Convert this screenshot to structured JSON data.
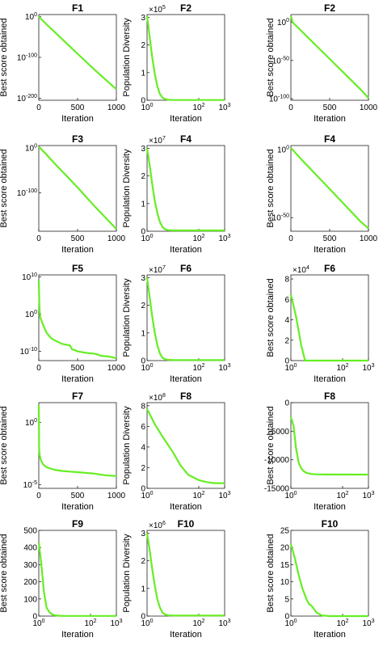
{
  "chart_data": [
    {
      "type": "line",
      "title": "F1",
      "xlabel": "Iteration",
      "ylabel": "Best score obtained",
      "xscale": "linear",
      "yscale": "log",
      "xticks": [
        {
          "v": 0,
          "label": "0"
        },
        {
          "v": 500,
          "label": "500"
        },
        {
          "v": 1000,
          "label": "1000"
        }
      ],
      "yticks": [
        {
          "v": 0,
          "label": "10^0"
        },
        {
          "v": -100,
          "label": "10^-100"
        },
        {
          "v": -200,
          "label": "10^-200"
        }
      ],
      "xlim": [
        0,
        1000
      ],
      "ylim": [
        -205,
        5
      ],
      "color": "#66ee22",
      "series": [
        {
          "x": [
            0,
            20,
            100,
            200,
            300,
            400,
            500,
            600,
            700,
            800,
            900,
            1000
          ],
          "y": [
            0,
            -4,
            -19,
            -37,
            -55,
            -73,
            -91,
            -109,
            -127,
            -144,
            -161,
            -178
          ]
        }
      ]
    },
    {
      "type": "line",
      "title": "F2",
      "xlabel": "Iteration",
      "ylabel": "Population Diversity",
      "xscale": "log",
      "yscale": "linear",
      "exponent": "5",
      "xticks": [
        {
          "v": 0,
          "label": "10^0"
        },
        {
          "v": 2,
          "label": "10^2"
        },
        {
          "v": 3,
          "label": "10^3"
        }
      ],
      "yticks": [
        {
          "v": 0,
          "label": "0"
        },
        {
          "v": 1,
          "label": "1"
        },
        {
          "v": 2,
          "label": "2"
        },
        {
          "v": 3,
          "label": "3"
        }
      ],
      "xlim": [
        0,
        3
      ],
      "ylim": [
        0,
        3.1
      ],
      "color": "#66ee22",
      "series": [
        {
          "x": [
            0,
            0.1,
            0.2,
            0.3,
            0.4,
            0.5,
            0.6,
            0.7,
            0.8,
            1.0,
            3
          ],
          "y": [
            3.05,
            2.3,
            1.55,
            0.95,
            0.5,
            0.22,
            0.09,
            0.04,
            0.02,
            0.01,
            0.01
          ]
        }
      ]
    },
    {
      "type": "line",
      "title": "F2",
      "xlabel": "Iteration",
      "ylabel": "Best score obtained",
      "xscale": "linear",
      "yscale": "log",
      "xticks": [
        {
          "v": 0,
          "label": "0"
        },
        {
          "v": 500,
          "label": "500"
        },
        {
          "v": 1000,
          "label": "1000"
        }
      ],
      "yticks": [
        {
          "v": 0,
          "label": "10^0"
        },
        {
          "v": -50,
          "label": "10^-50"
        },
        {
          "v": -100,
          "label": "10^-100"
        }
      ],
      "xlim": [
        0,
        1000
      ],
      "ylim": [
        -102,
        10
      ],
      "color": "#66ee22",
      "series": [
        {
          "x": [
            0,
            10,
            20,
            100,
            200,
            300,
            400,
            500,
            600,
            700,
            800,
            900,
            1000
          ],
          "y": [
            8,
            5,
            0,
            -8,
            -18,
            -28,
            -38,
            -48,
            -58,
            -68,
            -78,
            -88,
            -99
          ]
        }
      ]
    },
    {
      "type": "line",
      "title": "F3",
      "xlabel": "Iteration",
      "ylabel": "Best score obtained",
      "xscale": "linear",
      "yscale": "log",
      "xticks": [
        {
          "v": 0,
          "label": "0"
        },
        {
          "v": 500,
          "label": "500"
        },
        {
          "v": 1000,
          "label": "1000"
        }
      ],
      "yticks": [
        {
          "v": 0,
          "label": "10^0"
        },
        {
          "v": -100,
          "label": "10^-100"
        }
      ],
      "xlim": [
        0,
        1000
      ],
      "ylim": [
        -185,
        5
      ],
      "color": "#66ee22",
      "series": [
        {
          "x": [
            0,
            15,
            100,
            200,
            300,
            400,
            500,
            600,
            700,
            800,
            900,
            1000
          ],
          "y": [
            2,
            0,
            -15,
            -34,
            -52,
            -70,
            -88,
            -107,
            -126,
            -144,
            -162,
            -180
          ]
        }
      ]
    },
    {
      "type": "line",
      "title": "F4",
      "xlabel": "Iteration",
      "ylabel": "Population Diversity",
      "xscale": "log",
      "yscale": "linear",
      "exponent": "7",
      "xticks": [
        {
          "v": 0,
          "label": "10^0"
        },
        {
          "v": 2,
          "label": "10^2"
        },
        {
          "v": 3,
          "label": "10^3"
        }
      ],
      "yticks": [
        {
          "v": 0,
          "label": "0"
        },
        {
          "v": 1,
          "label": "1"
        },
        {
          "v": 2,
          "label": "2"
        },
        {
          "v": 3,
          "label": "3"
        }
      ],
      "xlim": [
        0,
        3
      ],
      "ylim": [
        0,
        3.1
      ],
      "color": "#66ee22",
      "series": [
        {
          "x": [
            0,
            0.1,
            0.2,
            0.3,
            0.4,
            0.5,
            0.6,
            0.7,
            0.8,
            1.0,
            3
          ],
          "y": [
            3.0,
            2.4,
            1.7,
            1.1,
            0.65,
            0.33,
            0.15,
            0.07,
            0.04,
            0.03,
            0.03
          ]
        }
      ]
    },
    {
      "type": "line",
      "title": "F4",
      "xlabel": "Iteration",
      "ylabel": "Best score obtained",
      "xscale": "linear",
      "yscale": "log",
      "xticks": [
        {
          "v": 0,
          "label": "0"
        },
        {
          "v": 500,
          "label": "500"
        },
        {
          "v": 1000,
          "label": "1000"
        }
      ],
      "yticks": [
        {
          "v": 0,
          "label": "10^0"
        },
        {
          "v": -50,
          "label": "10^-50"
        }
      ],
      "xlim": [
        0,
        1000
      ],
      "ylim": [
        -60,
        3
      ],
      "color": "#66ee22",
      "series": [
        {
          "x": [
            0,
            20,
            100,
            200,
            300,
            400,
            500,
            600,
            700,
            800,
            900,
            1000
          ],
          "y": [
            1,
            0,
            -5,
            -11,
            -17,
            -23,
            -29,
            -35,
            -41,
            -47,
            -53,
            -58
          ]
        }
      ]
    },
    {
      "type": "line",
      "title": "F5",
      "xlabel": "Iteration",
      "ylabel": "",
      "xscale": "linear",
      "yscale": "log",
      "xticks": [
        {
          "v": 0,
          "label": "0"
        },
        {
          "v": 500,
          "label": "500"
        },
        {
          "v": 1000,
          "label": "1000"
        }
      ],
      "yticks": [
        {
          "v": 10,
          "label": "10^10"
        },
        {
          "v": 0,
          "label": "10^0"
        },
        {
          "v": -10,
          "label": "10^-10"
        }
      ],
      "xlim": [
        0,
        1000
      ],
      "ylim": [
        -12.5,
        10.5
      ],
      "color": "#66ee22",
      "series": [
        {
          "x": [
            0,
            5,
            10,
            20,
            30,
            60,
            100,
            130,
            160,
            200,
            250,
            300,
            340,
            400,
            430,
            480,
            500,
            550,
            600,
            650,
            700,
            750,
            800,
            850,
            900,
            950,
            1000
          ],
          "y": [
            9,
            4,
            1,
            -1,
            -1.5,
            -3.2,
            -5,
            -5.8,
            -6.5,
            -7,
            -7.5,
            -8,
            -8.2,
            -8.4,
            -9.5,
            -9.8,
            -10,
            -10.2,
            -10.4,
            -10.5,
            -10.6,
            -10.8,
            -11.2,
            -11.3,
            -11.4,
            -11.6,
            -11.9
          ]
        }
      ]
    },
    {
      "type": "line",
      "title": "F6",
      "xlabel": "Iteration",
      "ylabel": "Population Diversity",
      "xscale": "log",
      "yscale": "linear",
      "exponent": "7",
      "xticks": [
        {
          "v": 0,
          "label": "10^0"
        },
        {
          "v": 2,
          "label": "10^2"
        },
        {
          "v": 3,
          "label": "10^3"
        }
      ],
      "yticks": [
        {
          "v": 0,
          "label": "0"
        },
        {
          "v": 1,
          "label": "1"
        },
        {
          "v": 2,
          "label": "2"
        },
        {
          "v": 3,
          "label": "3"
        }
      ],
      "xlim": [
        0,
        3
      ],
      "ylim": [
        0,
        3.1
      ],
      "color": "#66ee22",
      "series": [
        {
          "x": [
            0,
            0.1,
            0.2,
            0.3,
            0.4,
            0.5,
            0.6,
            0.7,
            0.8,
            1.0,
            3
          ],
          "y": [
            3.0,
            2.3,
            1.6,
            1.0,
            0.55,
            0.25,
            0.1,
            0.05,
            0.03,
            0.02,
            0.02
          ]
        }
      ]
    },
    {
      "type": "line",
      "title": "F6",
      "xlabel": "Iteration",
      "ylabel": "Best score obtained",
      "xscale": "log",
      "yscale": "linear",
      "exponent": "4",
      "xticks": [
        {
          "v": 0,
          "label": "10^0"
        },
        {
          "v": 2,
          "label": "10^2"
        },
        {
          "v": 3,
          "label": "10^3"
        }
      ],
      "yticks": [
        {
          "v": 0,
          "label": "0"
        },
        {
          "v": 2,
          "label": "2"
        },
        {
          "v": 4,
          "label": "4"
        },
        {
          "v": 6,
          "label": "6"
        },
        {
          "v": 8,
          "label": "8"
        }
      ],
      "xlim": [
        0,
        3
      ],
      "ylim": [
        0,
        8.4
      ],
      "color": "#66ee22",
      "series": [
        {
          "x": [
            0,
            0.2,
            0.4,
            0.55,
            3
          ],
          "y": [
            6.5,
            4.3,
            1.5,
            0,
            0
          ]
        }
      ]
    },
    {
      "type": "line",
      "title": "F7",
      "xlabel": "Iteration",
      "ylabel": "Best score obtained",
      "xscale": "linear",
      "yscale": "log",
      "xticks": [
        {
          "v": 0,
          "label": "0"
        },
        {
          "v": 500,
          "label": "500"
        },
        {
          "v": 1000,
          "label": "1000"
        }
      ],
      "yticks": [
        {
          "v": 0,
          "label": "10^0"
        },
        {
          "v": -5,
          "label": "10^-5"
        }
      ],
      "xlim": [
        0,
        1000
      ],
      "ylim": [
        -5.3,
        1.6
      ],
      "color": "#66ee22",
      "series": [
        {
          "x": [
            0,
            4,
            10,
            30,
            60,
            100,
            200,
            300,
            400,
            500,
            600,
            700,
            800,
            900,
            1000
          ],
          "y": [
            1.4,
            -2,
            -2.6,
            -3.1,
            -3.4,
            -3.6,
            -3.8,
            -3.9,
            -3.95,
            -4.0,
            -4.05,
            -4.1,
            -4.2,
            -4.27,
            -4.3
          ]
        }
      ]
    },
    {
      "type": "line",
      "title": "F8",
      "xlabel": "Iteration",
      "ylabel": "Population Diversity",
      "xscale": "log",
      "yscale": "linear",
      "exponent": "8",
      "xticks": [
        {
          "v": 0,
          "label": "10^0"
        },
        {
          "v": 2,
          "label": "10^2"
        },
        {
          "v": 3,
          "label": "10^3"
        }
      ],
      "yticks": [
        {
          "v": 0,
          "label": "0"
        },
        {
          "v": 2,
          "label": "2"
        },
        {
          "v": 4,
          "label": "4"
        },
        {
          "v": 6,
          "label": "6"
        },
        {
          "v": 8,
          "label": "8"
        }
      ],
      "xlim": [
        0,
        3
      ],
      "ylim": [
        0,
        8.3
      ],
      "color": "#66ee22",
      "series": [
        {
          "x": [
            0,
            0.3,
            0.6,
            1.0,
            1.3,
            1.6,
            2.0,
            2.3,
            2.6,
            3
          ],
          "y": [
            7.7,
            6.2,
            5.0,
            3.5,
            2.2,
            1.3,
            0.8,
            0.6,
            0.5,
            0.5
          ]
        }
      ]
    },
    {
      "type": "line",
      "title": "F8",
      "xlabel": "Iteration",
      "ylabel": "Best score obtained",
      "xscale": "log",
      "yscale": "linear",
      "xticks": [
        {
          "v": 0,
          "label": "10^0"
        },
        {
          "v": 2,
          "label": "10^2"
        },
        {
          "v": 3,
          "label": "10^3"
        }
      ],
      "yticks": [
        {
          "v": 0,
          "label": "0"
        },
        {
          "v": -5000,
          "label": "-5000"
        },
        {
          "v": -10000,
          "label": "-10000"
        },
        {
          "v": -15000,
          "label": "-15000"
        }
      ],
      "xlim": [
        0,
        3
      ],
      "ylim": [
        -15000,
        0
      ],
      "color": "#66ee22",
      "series": [
        {
          "x": [
            0,
            0.1,
            0.2,
            0.3,
            0.4,
            0.5,
            0.6,
            0.8,
            1.0,
            1.3,
            3
          ],
          "y": [
            -2500,
            -4000,
            -8000,
            -10500,
            -11500,
            -12000,
            -12300,
            -12500,
            -12550,
            -12580,
            -12600
          ]
        }
      ]
    },
    {
      "type": "line",
      "title": "F9",
      "xlabel": "Iteration",
      "ylabel": "Best score obtained",
      "xscale": "log",
      "yscale": "linear",
      "xticks": [
        {
          "v": 0,
          "label": "10^0"
        },
        {
          "v": 2,
          "label": "10^2"
        },
        {
          "v": 3,
          "label": "10^3"
        }
      ],
      "yticks": [
        {
          "v": 0,
          "label": "0"
        },
        {
          "v": 100,
          "label": "100"
        },
        {
          "v": 200,
          "label": "200"
        },
        {
          "v": 300,
          "label": "300"
        },
        {
          "v": 400,
          "label": "400"
        },
        {
          "v": 500,
          "label": "500"
        }
      ],
      "xlim": [
        0,
        3
      ],
      "ylim": [
        0,
        500
      ],
      "color": "#66ee22",
      "series": [
        {
          "x": [
            0,
            0.1,
            0.2,
            0.3,
            0.4,
            0.5,
            0.6,
            0.8,
            1.0,
            3
          ],
          "y": [
            430,
            300,
            140,
            50,
            25,
            12,
            5,
            2,
            1,
            1
          ]
        }
      ]
    },
    {
      "type": "line",
      "title": "F10",
      "xlabel": "Iteration",
      "ylabel": "Population Diversity",
      "xscale": "log",
      "yscale": "linear",
      "exponent": "6",
      "xticks": [
        {
          "v": 0,
          "label": "10^0"
        },
        {
          "v": 2,
          "label": "10^2"
        },
        {
          "v": 3,
          "label": "10^3"
        }
      ],
      "yticks": [
        {
          "v": 0,
          "label": "0"
        },
        {
          "v": 1,
          "label": "1"
        },
        {
          "v": 2,
          "label": "2"
        },
        {
          "v": 3,
          "label": "3"
        }
      ],
      "xlim": [
        0,
        3
      ],
      "ylim": [
        0,
        3.1
      ],
      "color": "#66ee22",
      "series": [
        {
          "x": [
            0,
            0.1,
            0.2,
            0.3,
            0.4,
            0.5,
            0.6,
            0.7,
            0.8,
            1.0,
            3
          ],
          "y": [
            3.0,
            2.4,
            1.7,
            1.1,
            0.6,
            0.3,
            0.12,
            0.06,
            0.03,
            0.02,
            0.02
          ]
        }
      ]
    },
    {
      "type": "line",
      "title": "F10",
      "xlabel": "Iteration",
      "ylabel": "Best score obtained",
      "xscale": "log",
      "yscale": "linear",
      "xticks": [
        {
          "v": 0,
          "label": "10^0"
        },
        {
          "v": 2,
          "label": "10^2"
        },
        {
          "v": 3,
          "label": "10^3"
        }
      ],
      "yticks": [
        {
          "v": 0,
          "label": "0"
        },
        {
          "v": 5,
          "label": "5"
        },
        {
          "v": 10,
          "label": "10"
        },
        {
          "v": 15,
          "label": "15"
        },
        {
          "v": 20,
          "label": "20"
        },
        {
          "v": 25,
          "label": "25"
        }
      ],
      "xlim": [
        0,
        3
      ],
      "ylim": [
        0,
        25
      ],
      "color": "#66ee22",
      "series": [
        {
          "x": [
            0,
            0.15,
            0.3,
            0.45,
            0.6,
            0.7,
            0.8,
            0.9,
            1.0,
            1.2,
            1.5,
            3
          ],
          "y": [
            21,
            17,
            12,
            8,
            5,
            3.5,
            3,
            2,
            1,
            0.2,
            0,
            0
          ]
        }
      ]
    }
  ]
}
